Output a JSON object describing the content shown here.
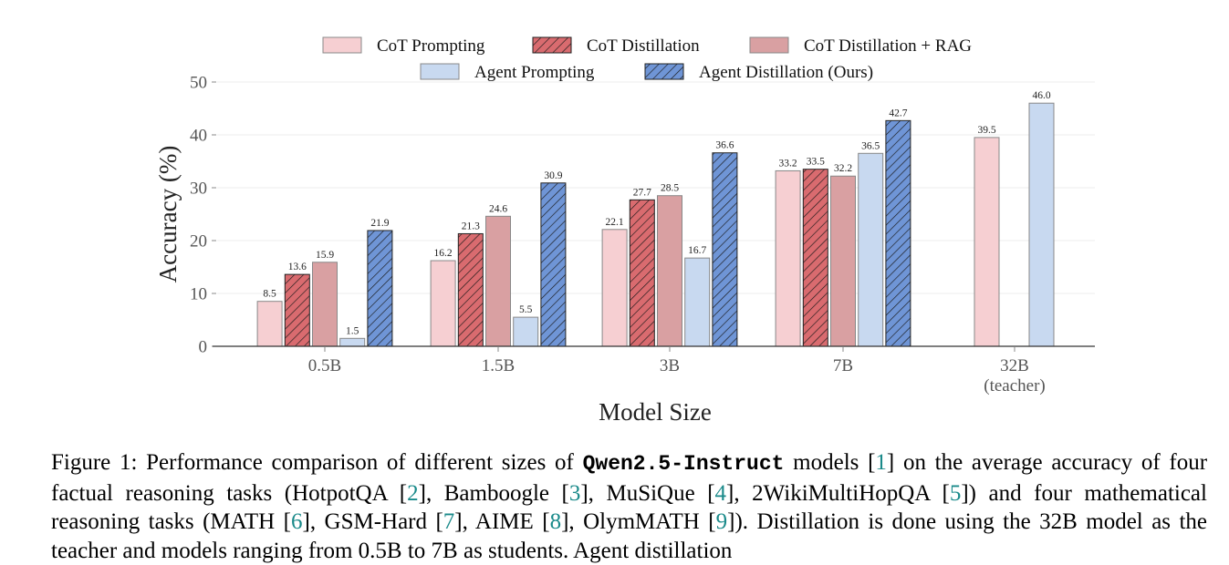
{
  "chart_data": {
    "type": "bar",
    "categories": [
      "0.5B",
      "1.5B",
      "3B",
      "7B",
      "32B"
    ],
    "category_sublabels": [
      "",
      "",
      "",
      "",
      "(teacher)"
    ],
    "xlabel": "Model Size",
    "ylabel": "Accuracy (%)",
    "ylim": [
      0,
      50
    ],
    "yticks": [
      0,
      10,
      20,
      30,
      40,
      50
    ],
    "grid": true,
    "legend_position": "top-center",
    "series": [
      {
        "name": "CoT Prompting",
        "color": "#f6cfd2",
        "stroke": "#888888",
        "hatch": false,
        "values": [
          8.5,
          16.2,
          22.1,
          33.2,
          39.5
        ],
        "labels": [
          "8.5",
          "16.2",
          "22.1",
          "33.2",
          "39.5"
        ]
      },
      {
        "name": "CoT Distillation",
        "color": "#d96b6f",
        "stroke": "#222222",
        "hatch": true,
        "values": [
          13.6,
          21.3,
          27.7,
          33.5,
          null
        ],
        "labels": [
          "13.6",
          "21.3",
          "27.7",
          "33.5",
          ""
        ]
      },
      {
        "name": "CoT Distillation + RAG",
        "color": "#d9a0a2",
        "stroke": "#888888",
        "hatch": false,
        "values": [
          15.9,
          24.6,
          28.5,
          32.2,
          null
        ],
        "labels": [
          "15.9",
          "24.6",
          "28.5",
          "32.2",
          ""
        ]
      },
      {
        "name": "Agent Prompting",
        "color": "#c8d9f0",
        "stroke": "#888888",
        "hatch": false,
        "values": [
          1.5,
          5.5,
          16.7,
          36.5,
          46.0
        ],
        "labels": [
          "1.5",
          "5.5",
          "16.7",
          "36.5",
          "46.0"
        ]
      },
      {
        "name": "Agent Distillation (Ours)",
        "color": "#6f95d6",
        "stroke": "#222222",
        "hatch": true,
        "values": [
          21.9,
          30.9,
          36.6,
          42.7,
          null
        ],
        "labels": [
          "21.9",
          "30.9",
          "36.6",
          "42.7",
          ""
        ]
      }
    ]
  },
  "caption": {
    "prefix": "Figure 1: Performance comparison of different sizes of ",
    "model": "Qwen2.5-Instruct",
    "p1": " models [",
    "c1": "1",
    "p2": "] on the average accuracy of four factual reasoning tasks (HotpotQA [",
    "c2": "2",
    "p3": "], Bamboogle [",
    "c3": "3",
    "p4": "], MuSiQue [",
    "c4": "4",
    "p5": "], 2WikiMultiHopQA [",
    "c5": "5",
    "p6": "]) and four mathematical reasoning tasks (MATH [",
    "c6": "6",
    "p7": "], GSM-Hard [",
    "c7": "7",
    "p8": "], AIME [",
    "c8": "8",
    "p9": "], OlymMATH [",
    "c9": "9",
    "p10": "]). Distillation is done using the 32B model as the teacher and models ranging from 0.5B to 7B as students. Agent distillation"
  }
}
